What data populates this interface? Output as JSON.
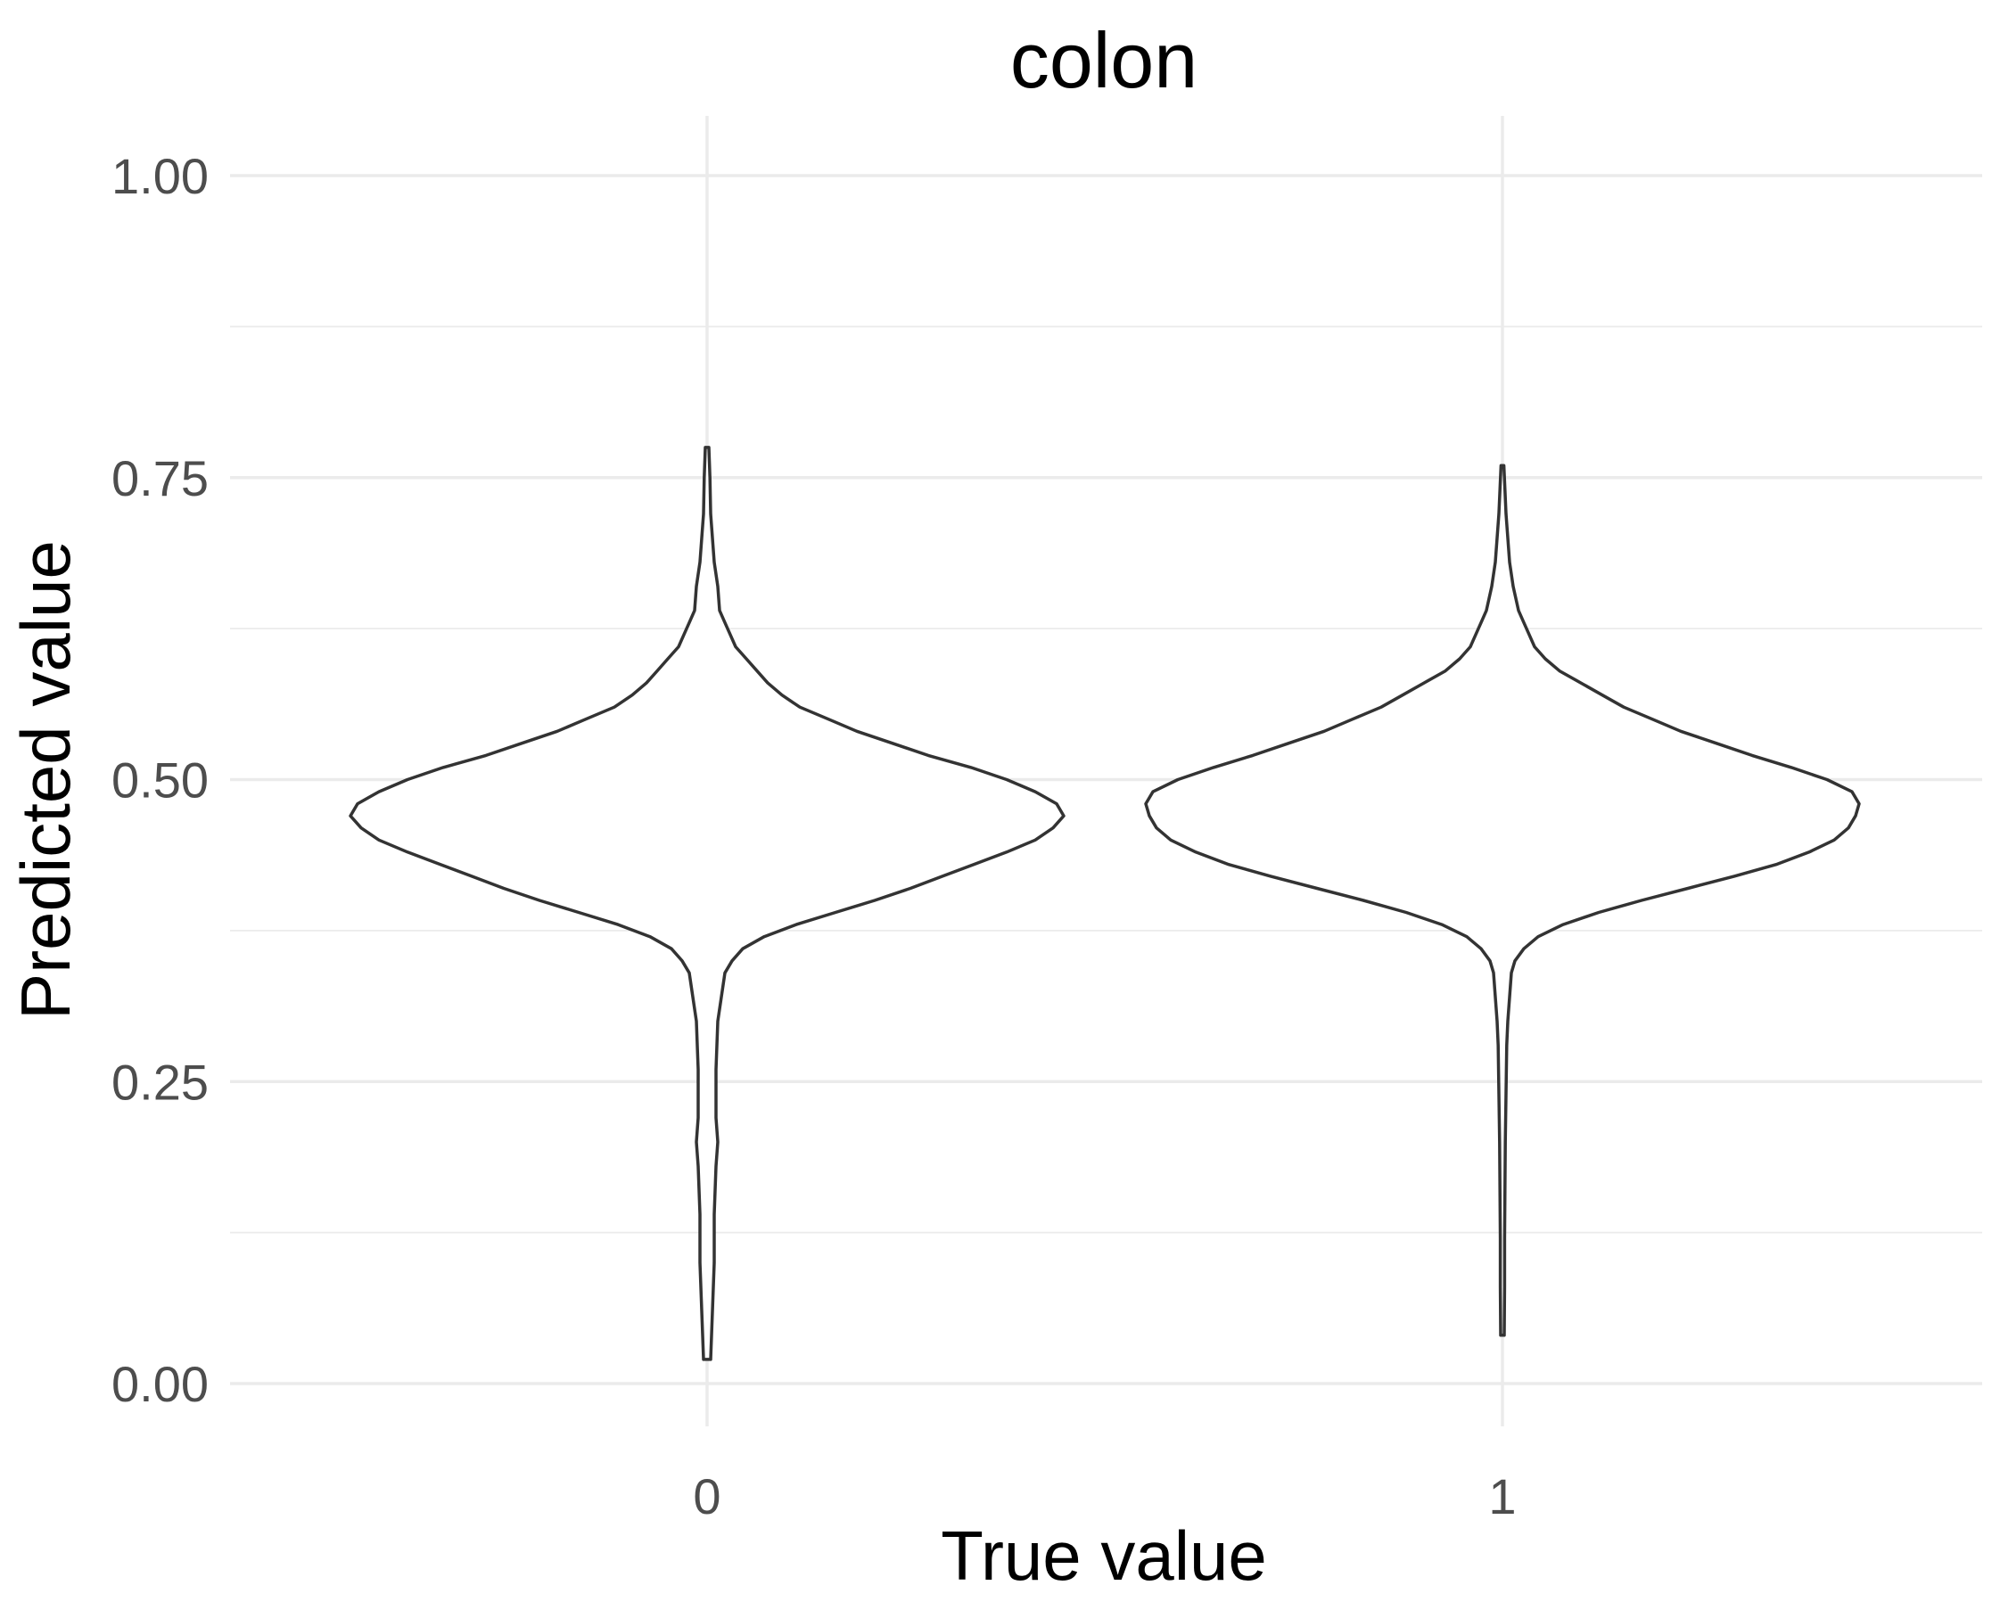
{
  "chart_data": {
    "type": "violin",
    "title": "colon",
    "xlabel": "True value",
    "ylabel": "Predicted value",
    "categories": [
      "0",
      "1"
    ],
    "ylim": [
      -0.05,
      1.05
    ],
    "y_ticks": [
      0.0,
      0.25,
      0.5,
      0.75,
      1.0
    ],
    "y_tick_labels": [
      "0.00",
      "0.25",
      "0.50",
      "0.75",
      "1.00"
    ],
    "grid": true,
    "legend": "none",
    "colors": {
      "outline": "#333333",
      "fill": "#ffffff",
      "grid": "#ebebeb",
      "tick_text": "#4d4d4d"
    },
    "series": [
      {
        "category": "0",
        "density": [
          [
            0.02,
            0.01
          ],
          [
            0.06,
            0.015
          ],
          [
            0.1,
            0.02
          ],
          [
            0.14,
            0.02
          ],
          [
            0.18,
            0.025
          ],
          [
            0.2,
            0.03
          ],
          [
            0.22,
            0.025
          ],
          [
            0.26,
            0.025
          ],
          [
            0.3,
            0.03
          ],
          [
            0.32,
            0.04
          ],
          [
            0.34,
            0.05
          ],
          [
            0.35,
            0.07
          ],
          [
            0.36,
            0.1
          ],
          [
            0.37,
            0.16
          ],
          [
            0.38,
            0.25
          ],
          [
            0.39,
            0.36
          ],
          [
            0.4,
            0.47
          ],
          [
            0.41,
            0.57
          ],
          [
            0.42,
            0.66
          ],
          [
            0.43,
            0.75
          ],
          [
            0.44,
            0.84
          ],
          [
            0.45,
            0.92
          ],
          [
            0.46,
            0.97
          ],
          [
            0.47,
            1.0
          ],
          [
            0.48,
            0.98
          ],
          [
            0.49,
            0.92
          ],
          [
            0.5,
            0.84
          ],
          [
            0.51,
            0.74
          ],
          [
            0.52,
            0.62
          ],
          [
            0.53,
            0.52
          ],
          [
            0.54,
            0.42
          ],
          [
            0.55,
            0.34
          ],
          [
            0.56,
            0.26
          ],
          [
            0.57,
            0.21
          ],
          [
            0.58,
            0.17
          ],
          [
            0.59,
            0.14
          ],
          [
            0.6,
            0.11
          ],
          [
            0.61,
            0.08
          ],
          [
            0.62,
            0.065
          ],
          [
            0.63,
            0.05
          ],
          [
            0.64,
            0.035
          ],
          [
            0.66,
            0.03
          ],
          [
            0.68,
            0.02
          ],
          [
            0.7,
            0.015
          ],
          [
            0.72,
            0.01
          ],
          [
            0.75,
            0.008
          ],
          [
            0.775,
            0.005
          ]
        ]
      },
      {
        "category": "1",
        "density": [
          [
            0.04,
            0.005
          ],
          [
            0.08,
            0.006
          ],
          [
            0.12,
            0.006
          ],
          [
            0.16,
            0.007
          ],
          [
            0.2,
            0.008
          ],
          [
            0.24,
            0.01
          ],
          [
            0.28,
            0.012
          ],
          [
            0.3,
            0.015
          ],
          [
            0.32,
            0.02
          ],
          [
            0.34,
            0.025
          ],
          [
            0.35,
            0.035
          ],
          [
            0.36,
            0.06
          ],
          [
            0.37,
            0.1
          ],
          [
            0.38,
            0.17
          ],
          [
            0.39,
            0.27
          ],
          [
            0.4,
            0.39
          ],
          [
            0.41,
            0.52
          ],
          [
            0.42,
            0.65
          ],
          [
            0.43,
            0.77
          ],
          [
            0.44,
            0.86
          ],
          [
            0.45,
            0.93
          ],
          [
            0.46,
            0.97
          ],
          [
            0.47,
            0.99
          ],
          [
            0.48,
            1.0
          ],
          [
            0.49,
            0.98
          ],
          [
            0.5,
            0.91
          ],
          [
            0.51,
            0.81
          ],
          [
            0.52,
            0.7
          ],
          [
            0.53,
            0.6
          ],
          [
            0.54,
            0.5
          ],
          [
            0.55,
            0.42
          ],
          [
            0.56,
            0.34
          ],
          [
            0.57,
            0.28
          ],
          [
            0.58,
            0.22
          ],
          [
            0.59,
            0.16
          ],
          [
            0.6,
            0.12
          ],
          [
            0.61,
            0.09
          ],
          [
            0.62,
            0.075
          ],
          [
            0.63,
            0.06
          ],
          [
            0.64,
            0.045
          ],
          [
            0.66,
            0.03
          ],
          [
            0.68,
            0.02
          ],
          [
            0.7,
            0.015
          ],
          [
            0.72,
            0.01
          ],
          [
            0.74,
            0.007
          ],
          [
            0.76,
            0.004
          ]
        ]
      }
    ]
  }
}
